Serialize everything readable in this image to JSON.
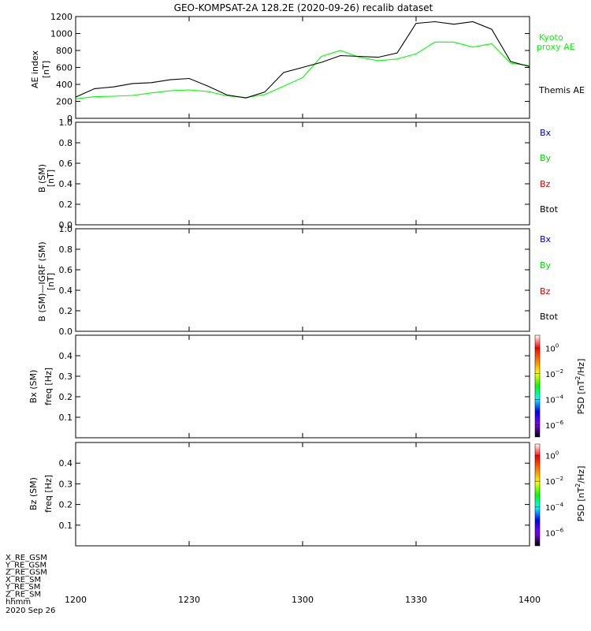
{
  "title": "GEO-KOMPSAT-2A 128.2E (2020-09-26) recalib dataset",
  "chart_data": [
    {
      "id": "ae",
      "type": "line",
      "ylabel": "AE index",
      "yunit": "[nT]",
      "ylim": [
        0,
        1200
      ],
      "yticks": [
        "0",
        "200",
        "400",
        "600",
        "800",
        "1000",
        "1200"
      ],
      "x_unit": "minutes after 12:00 UT",
      "xlim": [
        0,
        120
      ],
      "series": [
        {
          "name": "Kyoto proxy AE",
          "label_lines": [
            "Kyoto",
            "proxy AE"
          ],
          "color": "#00ff00",
          "x": [
            0,
            5,
            10,
            15,
            20,
            25,
            30,
            35,
            40,
            45,
            50,
            55,
            60,
            65,
            70,
            75,
            80,
            85,
            90,
            95,
            100,
            105,
            110,
            115,
            120
          ],
          "y": [
            230,
            255,
            260,
            270,
            300,
            325,
            335,
            315,
            265,
            245,
            280,
            380,
            480,
            730,
            800,
            720,
            680,
            700,
            760,
            900,
            900,
            840,
            880,
            650,
            620
          ]
        },
        {
          "name": "Themis AE",
          "label_lines": [
            "Themis AE"
          ],
          "color": "#000000",
          "x": [
            0,
            5,
            10,
            15,
            20,
            25,
            30,
            35,
            40,
            45,
            50,
            55,
            60,
            65,
            70,
            75,
            80,
            85,
            90,
            95,
            100,
            105,
            110,
            115,
            120
          ],
          "y": [
            250,
            350,
            370,
            410,
            420,
            455,
            470,
            380,
            275,
            240,
            310,
            540,
            600,
            660,
            740,
            730,
            720,
            770,
            1120,
            1140,
            1110,
            1140,
            1050,
            670,
            610
          ]
        }
      ]
    },
    {
      "id": "b",
      "type": "line",
      "ylabel": "B (SM)",
      "yunit": "[nT]",
      "ylim": [
        0,
        1
      ],
      "yticks": [
        "0.0",
        "0.2",
        "0.4",
        "0.6",
        "0.8",
        "1.0"
      ],
      "series": [
        {
          "name": "Bx",
          "color": "#0000cc",
          "y": []
        },
        {
          "name": "By",
          "color": "#00dd00",
          "y": []
        },
        {
          "name": "Bz",
          "color": "#dd0000",
          "y": []
        },
        {
          "name": "Btot",
          "color": "#000000",
          "y": []
        }
      ]
    },
    {
      "id": "bigrf",
      "type": "line",
      "ylabel": "B (SM)—IGRF (SM)",
      "yunit": "[nT]",
      "ylim": [
        0,
        1
      ],
      "yticks": [
        "0.0",
        "0.2",
        "0.4",
        "0.6",
        "0.8",
        "1.0"
      ],
      "series": [
        {
          "name": "Bx",
          "color": "#0000cc",
          "y": []
        },
        {
          "name": "By",
          "color": "#00dd00",
          "y": []
        },
        {
          "name": "Bz",
          "color": "#dd0000",
          "y": []
        },
        {
          "name": "Btot",
          "color": "#000000",
          "y": []
        }
      ]
    },
    {
      "id": "bx_spec",
      "type": "heatmap",
      "ylabel": "Bx (SM)",
      "ylabel2": "freq [Hz]",
      "ylim": [
        0,
        0.5
      ],
      "yticks": [
        "0.1",
        "0.2",
        "0.3",
        "0.4"
      ],
      "colorbar": {
        "label_main": "PSD [nT",
        "label_sup": "2",
        "label_end": "/Hz]",
        "ticks": [
          {
            "base": "10",
            "exp": "0"
          },
          {
            "base": "10",
            "exp": "−2"
          },
          {
            "base": "10",
            "exp": "−4"
          },
          {
            "base": "10",
            "exp": "−6"
          }
        ],
        "log_range": [
          -7,
          1
        ]
      }
    },
    {
      "id": "bz_spec",
      "type": "heatmap",
      "ylabel": "Bz (SM)",
      "ylabel2": "freq [Hz]",
      "ylim": [
        0,
        0.5
      ],
      "yticks": [
        "0.1",
        "0.2",
        "0.3",
        "0.4"
      ],
      "colorbar": {
        "label_main": "PSD [nT",
        "label_sup": "2",
        "label_end": "/Hz]",
        "ticks": [
          {
            "base": "10",
            "exp": "0"
          },
          {
            "base": "10",
            "exp": "−2"
          },
          {
            "base": "10",
            "exp": "−4"
          },
          {
            "base": "10",
            "exp": "−6"
          }
        ],
        "log_range": [
          -7,
          1
        ]
      }
    }
  ],
  "x_axis": {
    "ticks": [
      "1200",
      "1230",
      "1300",
      "1330",
      "1400"
    ],
    "extra_rows": [
      "X_RE_GSM",
      "Y_RE_GSM",
      "Z_RE_GSM",
      "X_RE_SM",
      "Y_RE_SM",
      "Z_RE_SM"
    ],
    "format_label": "hhmm",
    "date_label": "2020 Sep 26"
  },
  "colors": {
    "colorbar": [
      "#ffffff",
      "#ff0000",
      "#ff7f00",
      "#ffff00",
      "#00ff00",
      "#00ffff",
      "#0000ff",
      "#8000ff",
      "#000000"
    ]
  }
}
